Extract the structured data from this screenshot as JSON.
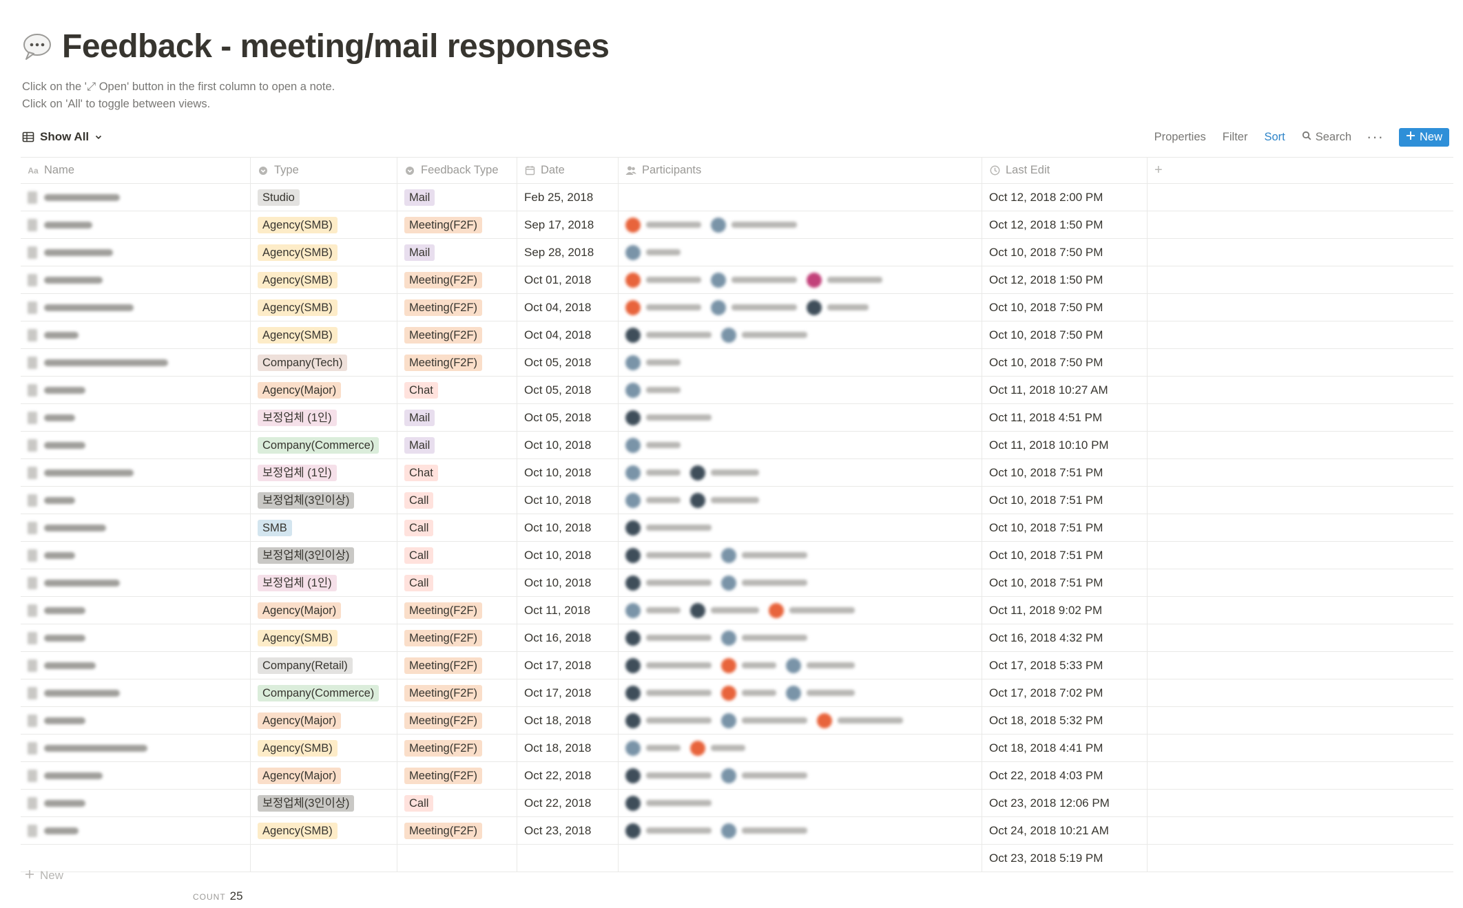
{
  "page": {
    "title": "Feedback - meeting/mail responses",
    "title_icon": "speech-bubble-icon",
    "description_line1": "Click on the '⤢ Open' button in the first column to open a note.",
    "description_line2": "Click on 'All' to toggle between views."
  },
  "toolbar": {
    "view_label": "Show All",
    "properties": "Properties",
    "filter": "Filter",
    "sort": "Sort",
    "search": "Search",
    "more": "···",
    "new": "New"
  },
  "columns": {
    "name": "Name",
    "type": "Type",
    "feedback_type": "Feedback Type",
    "date": "Date",
    "participants": "Participants",
    "last_edit": "Last Edit",
    "add": "+"
  },
  "tag_colors": {
    "Studio": "#e3e2e0",
    "Agency(SMB)": "#fdecc8",
    "Agency(Major)": "#fadec9",
    "Company(Tech)": "#eee0da",
    "Company(Commerce)": "#dbeddb",
    "Company(Retail)": "#e3e2e0",
    "보정업체 (1인)": "#f5e0e9",
    "보정업체(3인이상)": "#c9c8c5",
    "SMB": "#d3e5ef",
    "Mail": "#e8deee",
    "Meeting(F2F)": "#fadec9",
    "Chat": "#ffe2dd",
    "Call": "#ffe2dd"
  },
  "avatar_colors": [
    "#e8643c",
    "#7a94a8",
    "#3f4e5a",
    "#c2417a"
  ],
  "rows": [
    {
      "type": "Studio",
      "feedback_type": "Mail",
      "date": "Feb 25, 2018",
      "participants": [],
      "last_edit": "Oct 12, 2018 2:00 PM",
      "name_len": 110
    },
    {
      "type": "Agency(SMB)",
      "feedback_type": "Meeting(F2F)",
      "date": "Sep 17, 2018",
      "participants": [
        0,
        1
      ],
      "last_edit": "Oct 12, 2018 1:50 PM",
      "name_len": 70
    },
    {
      "type": "Agency(SMB)",
      "feedback_type": "Mail",
      "date": "Sep 28, 2018",
      "participants": [
        1
      ],
      "last_edit": "Oct 10, 2018 7:50 PM",
      "name_len": 100
    },
    {
      "type": "Agency(SMB)",
      "feedback_type": "Meeting(F2F)",
      "date": "Oct 01, 2018",
      "participants": [
        0,
        1,
        3
      ],
      "last_edit": "Oct 12, 2018 1:50 PM",
      "name_len": 85
    },
    {
      "type": "Agency(SMB)",
      "feedback_type": "Meeting(F2F)",
      "date": "Oct 04, 2018",
      "participants": [
        0,
        1,
        2
      ],
      "last_edit": "Oct 10, 2018 7:50 PM",
      "name_len": 130
    },
    {
      "type": "Agency(SMB)",
      "feedback_type": "Meeting(F2F)",
      "date": "Oct 04, 2018",
      "participants": [
        2,
        1
      ],
      "last_edit": "Oct 10, 2018 7:50 PM",
      "name_len": 50
    },
    {
      "type": "Company(Tech)",
      "feedback_type": "Meeting(F2F)",
      "date": "Oct 05, 2018",
      "participants": [
        1
      ],
      "last_edit": "Oct 10, 2018 7:50 PM",
      "name_len": 180
    },
    {
      "type": "Agency(Major)",
      "feedback_type": "Chat",
      "date": "Oct 05, 2018",
      "participants": [
        1
      ],
      "last_edit": "Oct 11, 2018 10:27 AM",
      "name_len": 60
    },
    {
      "type": "보정업체 (1인)",
      "feedback_type": "Mail",
      "date": "Oct 05, 2018",
      "participants": [
        2
      ],
      "last_edit": "Oct 11, 2018 4:51 PM",
      "name_len": 45
    },
    {
      "type": "Company(Commerce)",
      "feedback_type": "Mail",
      "date": "Oct 10, 2018",
      "participants": [
        1
      ],
      "last_edit": "Oct 11, 2018 10:10 PM",
      "name_len": 60
    },
    {
      "type": "보정업체 (1인)",
      "feedback_type": "Chat",
      "date": "Oct 10, 2018",
      "participants": [
        1,
        2
      ],
      "last_edit": "Oct 10, 2018 7:51 PM",
      "name_len": 130
    },
    {
      "type": "보정업체(3인이상)",
      "feedback_type": "Call",
      "date": "Oct 10, 2018",
      "participants": [
        1,
        2
      ],
      "last_edit": "Oct 10, 2018 7:51 PM",
      "name_len": 45
    },
    {
      "type": "SMB",
      "feedback_type": "Call",
      "date": "Oct 10, 2018",
      "participants": [
        2
      ],
      "last_edit": "Oct 10, 2018 7:51 PM",
      "name_len": 90
    },
    {
      "type": "보정업체(3인이상)",
      "feedback_type": "Call",
      "date": "Oct 10, 2018",
      "participants": [
        2,
        1
      ],
      "last_edit": "Oct 10, 2018 7:51 PM",
      "name_len": 45
    },
    {
      "type": "보정업체 (1인)",
      "feedback_type": "Call",
      "date": "Oct 10, 2018",
      "participants": [
        2,
        1
      ],
      "last_edit": "Oct 10, 2018 7:51 PM",
      "name_len": 110
    },
    {
      "type": "Agency(Major)",
      "feedback_type": "Meeting(F2F)",
      "date": "Oct 11, 2018",
      "participants": [
        1,
        2,
        0
      ],
      "last_edit": "Oct 11, 2018 9:02 PM",
      "name_len": 60
    },
    {
      "type": "Agency(SMB)",
      "feedback_type": "Meeting(F2F)",
      "date": "Oct 16, 2018",
      "participants": [
        2,
        1
      ],
      "last_edit": "Oct 16, 2018 4:32 PM",
      "name_len": 60
    },
    {
      "type": "Company(Retail)",
      "feedback_type": "Meeting(F2F)",
      "date": "Oct 17, 2018",
      "participants": [
        2,
        0,
        1
      ],
      "last_edit": "Oct 17, 2018 5:33 PM",
      "name_len": 75
    },
    {
      "type": "Company(Commerce)",
      "feedback_type": "Meeting(F2F)",
      "date": "Oct 17, 2018",
      "participants": [
        2,
        0,
        1
      ],
      "last_edit": "Oct 17, 2018 7:02 PM",
      "name_len": 110
    },
    {
      "type": "Agency(Major)",
      "feedback_type": "Meeting(F2F)",
      "date": "Oct 18, 2018",
      "participants": [
        2,
        1,
        0
      ],
      "last_edit": "Oct 18, 2018 5:32 PM",
      "name_len": 60
    },
    {
      "type": "Agency(SMB)",
      "feedback_type": "Meeting(F2F)",
      "date": "Oct 18, 2018",
      "participants": [
        1,
        0
      ],
      "last_edit": "Oct 18, 2018 4:41 PM",
      "name_len": 150
    },
    {
      "type": "Agency(Major)",
      "feedback_type": "Meeting(F2F)",
      "date": "Oct 22, 2018",
      "participants": [
        2,
        1
      ],
      "last_edit": "Oct 22, 2018 4:03 PM",
      "name_len": 85
    },
    {
      "type": "보정업체(3인이상)",
      "feedback_type": "Call",
      "date": "Oct 22, 2018",
      "participants": [
        2
      ],
      "last_edit": "Oct 23, 2018 12:06 PM",
      "name_len": 60
    },
    {
      "type": "Agency(SMB)",
      "feedback_type": "Meeting(F2F)",
      "date": "Oct 23, 2018",
      "participants": [
        2,
        1
      ],
      "last_edit": "Oct 24, 2018 10:21 AM",
      "name_len": 50
    },
    {
      "type": "",
      "feedback_type": "",
      "date": "",
      "participants": [],
      "last_edit": "Oct 23, 2018 5:19 PM",
      "name_len": 0
    }
  ],
  "footer": {
    "new_label": "New",
    "count_label": "COUNT",
    "count_value": "25"
  }
}
